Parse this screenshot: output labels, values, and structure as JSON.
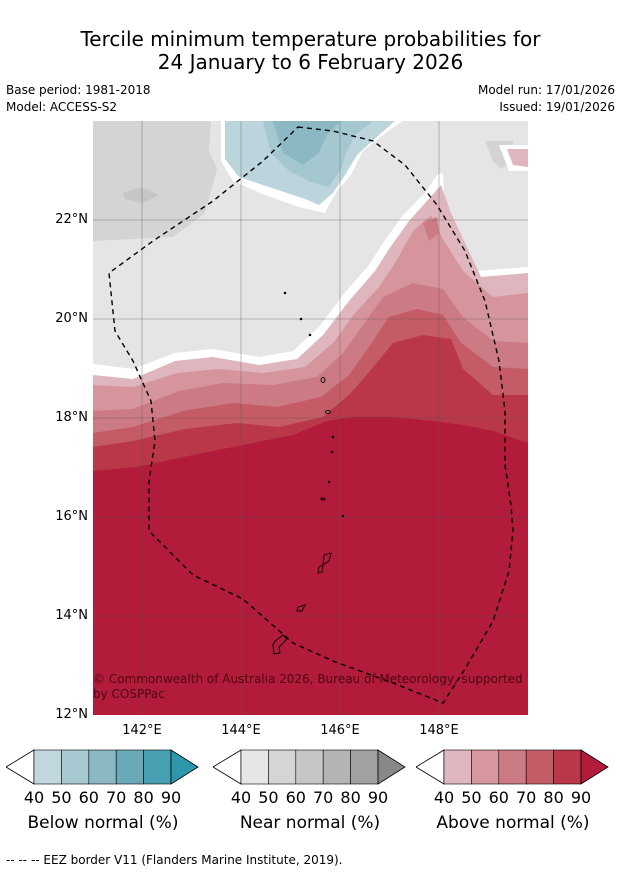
{
  "title_line1": "Tercile minimum temperature probabilities for",
  "title_line2": "24 January to 6 February 2026",
  "meta": {
    "base_period": "Base period: 1981-2018",
    "model": "Model: ACCESS-S2",
    "model_run": "Model run: 17/01/2026",
    "issued": "Issued: 19/01/2026"
  },
  "map": {
    "lat_labels": [
      "22°N",
      "20°N",
      "18°N",
      "16°N",
      "14°N",
      "12°N"
    ],
    "lon_labels": [
      "142°E",
      "144°E",
      "146°E",
      "148°E"
    ],
    "copyright": "© Commonwealth of Australia 2026, Bureau of Meteorology, supported by COSPPac"
  },
  "legend": {
    "ticks": [
      "40",
      "50",
      "60",
      "70",
      "80",
      "90"
    ],
    "below": {
      "label": "Below normal (%)",
      "colors": [
        "#c0d7de",
        "#a7c9d1",
        "#8cb8c4",
        "#6aa9b8",
        "#47a0b2",
        "#2b98ac"
      ]
    },
    "near": {
      "label": "Near normal (%)",
      "colors": [
        "#e6e6e6",
        "#d5d5d5",
        "#c6c6c6",
        "#b4b4b4",
        "#a1a1a1",
        "#888888"
      ]
    },
    "above": {
      "label": "Above normal (%)",
      "colors": [
        "#e0b7bf",
        "#d6979f",
        "#cc7a83",
        "#c55d68",
        "#b93748",
        "#b21c3a"
      ]
    }
  },
  "footer": "--  --  -- EEZ border V11 (Flanders Marine Institute, 2019)."
}
